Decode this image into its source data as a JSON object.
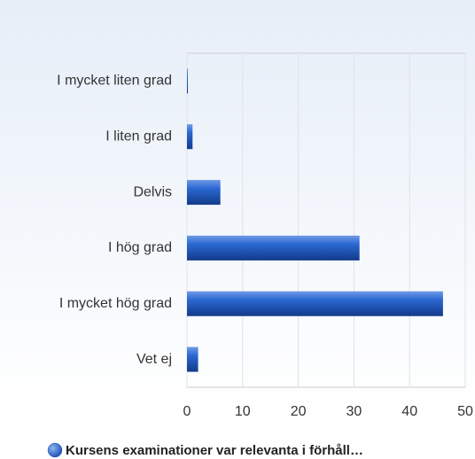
{
  "chart_data": {
    "type": "hbar",
    "categories": [
      "I mycket liten grad",
      "I liten grad",
      "Delvis",
      "I hög grad",
      "I mycket hög grad",
      "Vet ej"
    ],
    "series": [
      {
        "name": "Kursens examinationer var relevanta i förhåll…",
        "color": "#1f5bc6",
        "values": [
          0,
          1,
          6,
          31,
          46,
          2
        ]
      }
    ],
    "xlim": [
      0,
      50
    ],
    "xticks": [
      0,
      10,
      20,
      30,
      40,
      50
    ],
    "grid": true,
    "legend": "bottom"
  }
}
